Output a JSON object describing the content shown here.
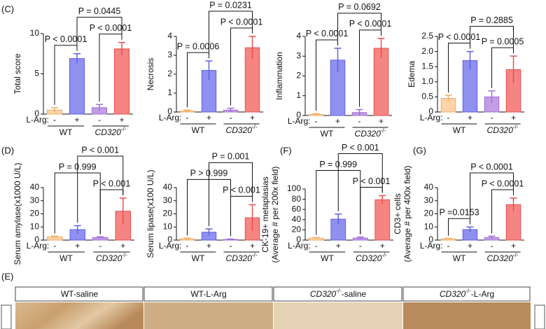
{
  "chart_data": [
    {
      "type": "bar",
      "panel": "(C)",
      "ylabel": [
        "Total score"
      ],
      "categories": [
        "-",
        "+",
        "-",
        "+"
      ],
      "groups": [
        {
          "name": "WT"
        },
        {
          "name": "CD320",
          "sup": "-/-"
        }
      ],
      "xprefix": "L-Arg:",
      "values": [
        0.5,
        6.9,
        0.8,
        8.1
      ],
      "errors": [
        0.3,
        0.6,
        0.4,
        0.8
      ],
      "colors": [
        "#fbd3a6",
        "#8f90f0",
        "#c29ce6",
        "#f58583"
      ],
      "edge_colors": [
        "#f2ae68",
        "#5f61e2",
        "#a06fd6",
        "#e84f4d"
      ],
      "ylim": [
        0,
        10
      ],
      "yticks": [
        0,
        5,
        10
      ],
      "comparisons": [
        "P < 0.0001",
        "P < 0.0001",
        "P = 0.0445"
      ]
    },
    {
      "type": "bar",
      "ylabel": [
        "Necrosis"
      ],
      "categories": [
        "-",
        "+",
        "-",
        "+"
      ],
      "groups": [
        {
          "name": "WT"
        },
        {
          "name": "CD320",
          "sup": "-/-"
        }
      ],
      "xprefix": "L-Arg:",
      "values": [
        0.05,
        2.2,
        0.1,
        3.4
      ],
      "errors": [
        0.05,
        0.5,
        0.1,
        0.6
      ],
      "colors": [
        "#fbd3a6",
        "#8f90f0",
        "#c29ce6",
        "#f58583"
      ],
      "edge_colors": [
        "#f2ae68",
        "#5f61e2",
        "#a06fd6",
        "#e84f4d"
      ],
      "ylim": [
        0,
        4
      ],
      "yticks": [
        0,
        1,
        2,
        3,
        4
      ],
      "comparisons": [
        "P = 0.0006",
        "P < 0.0001",
        "P = 0.0231"
      ]
    },
    {
      "type": "bar",
      "ylabel": [
        "Inflammation"
      ],
      "categories": [
        "-",
        "+",
        "-",
        "+"
      ],
      "groups": [
        {
          "name": "WT"
        },
        {
          "name": "CD320",
          "sup": "-/-"
        }
      ],
      "xprefix": "L-Arg:",
      "values": [
        0.05,
        2.8,
        0.15,
        3.4
      ],
      "errors": [
        0.05,
        0.6,
        0.15,
        0.5
      ],
      "colors": [
        "#fbd3a6",
        "#8f90f0",
        "#c29ce6",
        "#f58583"
      ],
      "edge_colors": [
        "#f2ae68",
        "#5f61e2",
        "#a06fd6",
        "#e84f4d"
      ],
      "ylim": [
        0,
        4
      ],
      "yticks": [
        0,
        1,
        2,
        3,
        4
      ],
      "comparisons": [
        "P < 0.0001",
        "P < 0.0001",
        "P = 0.0692"
      ]
    },
    {
      "type": "bar",
      "ylabel": [
        "Edema"
      ],
      "categories": [
        "-",
        "+",
        "-",
        "+"
      ],
      "groups": [
        {
          "name": "WT"
        },
        {
          "name": "CD320",
          "sup": "-/-"
        }
      ],
      "xprefix": "L-Arg:",
      "values": [
        0.45,
        1.7,
        0.5,
        1.4
      ],
      "errors": [
        0.1,
        0.3,
        0.2,
        0.45
      ],
      "colors": [
        "#fbd3a6",
        "#8f90f0",
        "#c29ce6",
        "#f58583"
      ],
      "edge_colors": [
        "#f2ae68",
        "#5f61e2",
        "#a06fd6",
        "#e84f4d"
      ],
      "ylim": [
        0,
        2.5
      ],
      "yticks": [
        0,
        0.5,
        {
          "value": 1,
          "label": "1.0"
        },
        1.5,
        {
          "value": 2,
          "label": "2.0"
        },
        2.5
      ],
      "comparisons": [
        "P < 0.0001",
        "P = 0.0005",
        "P = 0.2885"
      ]
    },
    {
      "type": "bar",
      "panel": "(D)",
      "ylabel": [
        "Serum amylase(x1000 U/L)"
      ],
      "categories": [
        "-",
        "+",
        "-",
        "+"
      ],
      "groups": [
        {
          "name": "WT"
        },
        {
          "name": "CD320",
          "sup": "-/-"
        }
      ],
      "xprefix": "L-Arg:",
      "values": [
        2.5,
        8,
        2,
        22
      ],
      "errors": [
        0.5,
        3,
        0.5,
        10
      ],
      "colors": [
        "#fbd3a6",
        "#8f90f0",
        "#c29ce6",
        "#f58583"
      ],
      "edge_colors": [
        "#f2ae68",
        "#5f61e2",
        "#a06fd6",
        "#e84f4d"
      ],
      "ylim": [
        0,
        40
      ],
      "yticks": [
        0,
        10,
        20,
        30,
        40
      ],
      "comparisons": [
        "P < 0.001",
        "P = 0.999",
        "P < 0.001"
      ]
    },
    {
      "type": "bar",
      "ylabel": [
        "Serum lipase(x100 U/L)"
      ],
      "categories": [
        "-",
        "+",
        "-",
        "+"
      ],
      "groups": [
        {
          "name": "WT"
        },
        {
          "name": "CD320",
          "sup": "-/-"
        }
      ],
      "xprefix": "L-Arg:",
      "values": [
        1,
        6,
        0.5,
        17
      ],
      "errors": [
        0.5,
        2.5,
        0.3,
        10
      ],
      "colors": [
        "#fbd3a6",
        "#8f90f0",
        "#c29ce6",
        "#f58583"
      ],
      "edge_colors": [
        "#f2ae68",
        "#5f61e2",
        "#a06fd6",
        "#e84f4d"
      ],
      "ylim": [
        0,
        40
      ],
      "yticks": [
        0,
        10,
        20,
        30,
        40
      ],
      "comparisons": [
        "P = 0.001",
        "P > 0.999",
        "P < 0.001"
      ]
    },
    {
      "type": "bar",
      "panel": "(F)",
      "ylabel": [
        "CK-19+ metaplasias",
        "(Average # per 200x field)"
      ],
      "categories": [
        "-",
        "+",
        "-",
        "+"
      ],
      "groups": [
        {
          "name": "WT"
        },
        {
          "name": "CD320",
          "sup": "-/-"
        }
      ],
      "xprefix": "L-Arg:",
      "values": [
        4,
        41,
        4,
        79
      ],
      "errors": [
        1,
        10,
        2,
        8
      ],
      "colors": [
        "#fbd3a6",
        "#8f90f0",
        "#c29ce6",
        "#f58583"
      ],
      "edge_colors": [
        "#f2ae68",
        "#5f61e2",
        "#a06fd6",
        "#e84f4d"
      ],
      "ylim": [
        0,
        100
      ],
      "yticks": [
        0,
        20,
        40,
        60,
        80,
        100
      ],
      "comparisons": [
        "P < 0.001",
        "P = 0.999",
        "P < 0.001"
      ]
    },
    {
      "type": "bar",
      "panel": "(G)",
      "ylabel": [
        "CD3+ cells",
        "(Average # per 400x field)"
      ],
      "categories": [
        "-",
        "+",
        "-",
        "+"
      ],
      "groups": [
        {
          "name": "WT"
        },
        {
          "name": "CD320",
          "sup": "-/-"
        }
      ],
      "xprefix": "L-Arg:",
      "values": [
        1,
        8,
        2,
        27
      ],
      "errors": [
        0.3,
        2,
        1,
        5
      ],
      "colors": [
        "#fbd3a6",
        "#8f90f0",
        "#c29ce6",
        "#f58583"
      ],
      "edge_colors": [
        "#f2ae68",
        "#5f61e2",
        "#a06fd6",
        "#e84f4d"
      ],
      "ylim": [
        0,
        40
      ],
      "yticks": [
        0,
        10,
        20,
        30,
        40
      ],
      "comparisons": [
        "P < 0.0001",
        "P < 0.0001",
        "P =0.0153"
      ]
    }
  ],
  "image_panel": {
    "panel": "(E)",
    "headers": [
      {
        "text": "WT-saline"
      },
      {
        "text": "WT-L-Arg"
      },
      {
        "name": "CD320",
        "sup": "-/-",
        "text": "-saline"
      },
      {
        "name": "CD320",
        "sup": "-/-",
        "text": "-L-Arg"
      }
    ]
  }
}
